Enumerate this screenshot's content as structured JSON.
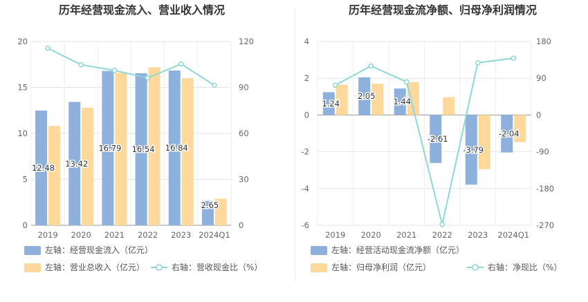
{
  "chart_data": [
    {
      "type": "bar",
      "title": "历年经营现金流入、营业收入情况",
      "categories": [
        "2019",
        "2020",
        "2021",
        "2022",
        "2023",
        "2024Q1"
      ],
      "left_axis": {
        "ticks": [
          "0",
          "5",
          "10",
          "15",
          "20"
        ],
        "range": [
          0,
          20
        ]
      },
      "right_axis": {
        "ticks": [
          "0",
          "30",
          "60",
          "90",
          "120"
        ],
        "range": [
          0,
          120
        ]
      },
      "series": [
        {
          "name": "左轴：经营现金流入（亿元）",
          "type": "bar",
          "axis": "left",
          "color": "#8eb0dd",
          "values": [
            12.48,
            13.42,
            16.79,
            16.54,
            16.84,
            2.65
          ],
          "labels": [
            "12.48",
            "13.42",
            "16.79",
            "16.54",
            "16.84",
            "2.65"
          ]
        },
        {
          "name": "左轴：营业总收入（亿元）",
          "type": "bar",
          "axis": "left",
          "color": "#fed99b",
          "values": [
            10.8,
            12.8,
            16.6,
            17.2,
            16.0,
            2.9
          ]
        },
        {
          "name": "右轴：营收现金比（%）",
          "type": "line",
          "axis": "right",
          "color": "#8fd6d8",
          "values": [
            115.6,
            104.8,
            101.1,
            96.2,
            105.3,
            91.4
          ]
        }
      ]
    },
    {
      "type": "bar",
      "title": "历年经营现金流净额、归母净利润情况",
      "categories": [
        "2019",
        "2020",
        "2021",
        "2022",
        "2023",
        "2024Q1"
      ],
      "left_axis": {
        "ticks": [
          "-6",
          "-4",
          "-2",
          "0",
          "2",
          "4"
        ],
        "range": [
          -6,
          4
        ]
      },
      "right_axis": {
        "ticks": [
          "-270",
          "-180",
          "-90",
          "0",
          "90",
          "180"
        ],
        "range": [
          -270,
          180
        ]
      },
      "series": [
        {
          "name": "左轴：经营活动现金流净额（亿元）",
          "type": "bar",
          "axis": "left",
          "color": "#8eb0dd",
          "values": [
            1.24,
            2.05,
            1.44,
            -2.61,
            -3.79,
            -2.04
          ],
          "labels": [
            "1.24",
            "2.05",
            "1.44",
            "-2.61",
            "-3.79",
            "-2.04"
          ]
        },
        {
          "name": "左轴：归母净利润（亿元）",
          "type": "bar",
          "axis": "left",
          "color": "#fed99b",
          "values": [
            1.65,
            1.7,
            1.78,
            0.97,
            -2.95,
            -1.48
          ]
        },
        {
          "name": "右轴：净现比（%）",
          "type": "line",
          "axis": "right",
          "color": "#8fd6d8",
          "values": [
            73,
            120,
            81,
            -268,
            128,
            139
          ]
        }
      ]
    }
  ]
}
